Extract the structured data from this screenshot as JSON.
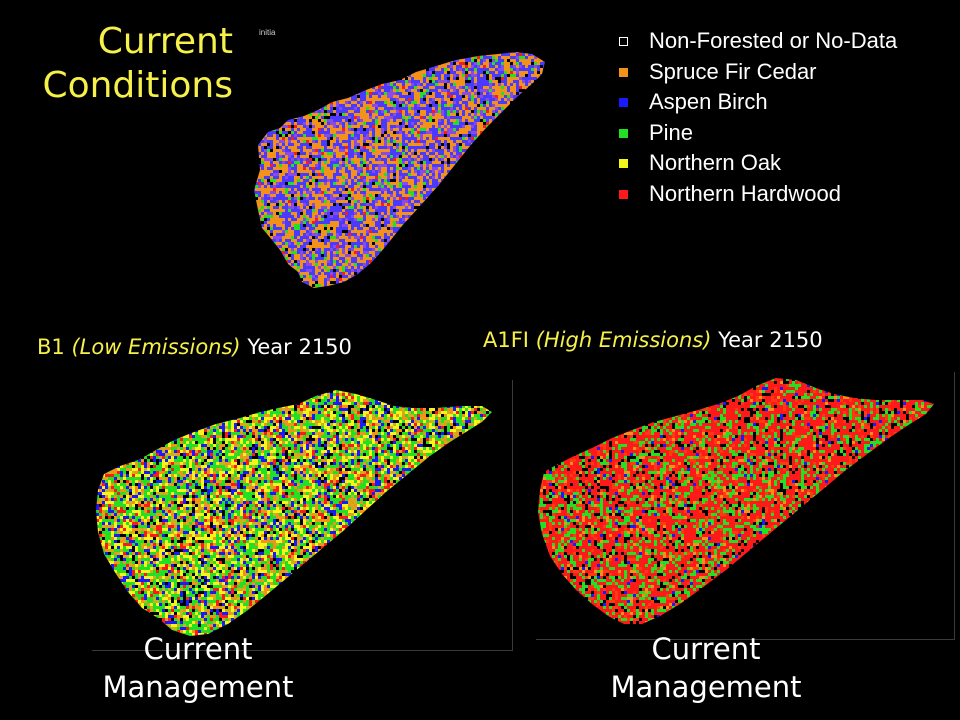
{
  "title": {
    "line1": "Current",
    "line2": "Conditions"
  },
  "tiny_label": "initia",
  "legend": {
    "items": [
      {
        "label": "Non-Forested or No-Data",
        "color": "#000000",
        "outline": true
      },
      {
        "label": "Spruce Fir Cedar",
        "color": "#f2921a"
      },
      {
        "label": "Aspen Birch",
        "color": "#1a1aff"
      },
      {
        "label": "Pine",
        "color": "#22e022"
      },
      {
        "label": "Northern Oak",
        "color": "#f5f51c"
      },
      {
        "label": "Northern Hardwood",
        "color": "#ff1a1a"
      }
    ]
  },
  "scenarios": {
    "b1": {
      "code": "B1",
      "emissions": "(Low Emissions)",
      "year": "Year 2150"
    },
    "a1fi": {
      "code": "A1FI",
      "emissions": "(High Emissions)",
      "year": "Year 2150"
    }
  },
  "management": {
    "left": {
      "line1": "Current",
      "line2": "Management"
    },
    "right": {
      "line1": "Current",
      "line2": "Management"
    }
  },
  "maps": {
    "current": {
      "mix": [
        {
          "color": "#f2921a",
          "w": 0.38
        },
        {
          "color": "#4a3aff",
          "w": 0.36
        },
        {
          "color": "#8a4ae8",
          "w": 0.12
        },
        {
          "color": "#22e022",
          "w": 0.07
        },
        {
          "color": "#000000",
          "w": 0.05
        },
        {
          "color": "#ff1a1a",
          "w": 0.02
        }
      ]
    },
    "b1": {
      "mix": [
        {
          "color": "#22e022",
          "w": 0.28
        },
        {
          "color": "#f5f51c",
          "w": 0.2
        },
        {
          "color": "#c9b21c",
          "w": 0.1
        },
        {
          "color": "#f2921a",
          "w": 0.12
        },
        {
          "color": "#1a1aff",
          "w": 0.12
        },
        {
          "color": "#ff1a1a",
          "w": 0.08
        },
        {
          "color": "#000000",
          "w": 0.1
        }
      ]
    },
    "a1fi": {
      "mix": [
        {
          "color": "#ff1a1a",
          "w": 0.5
        },
        {
          "color": "#ff3a10",
          "w": 0.1
        },
        {
          "color": "#22e022",
          "w": 0.22
        },
        {
          "color": "#000000",
          "w": 0.1
        },
        {
          "color": "#f2921a",
          "w": 0.05
        },
        {
          "color": "#1a1aff",
          "w": 0.03
        }
      ]
    }
  }
}
